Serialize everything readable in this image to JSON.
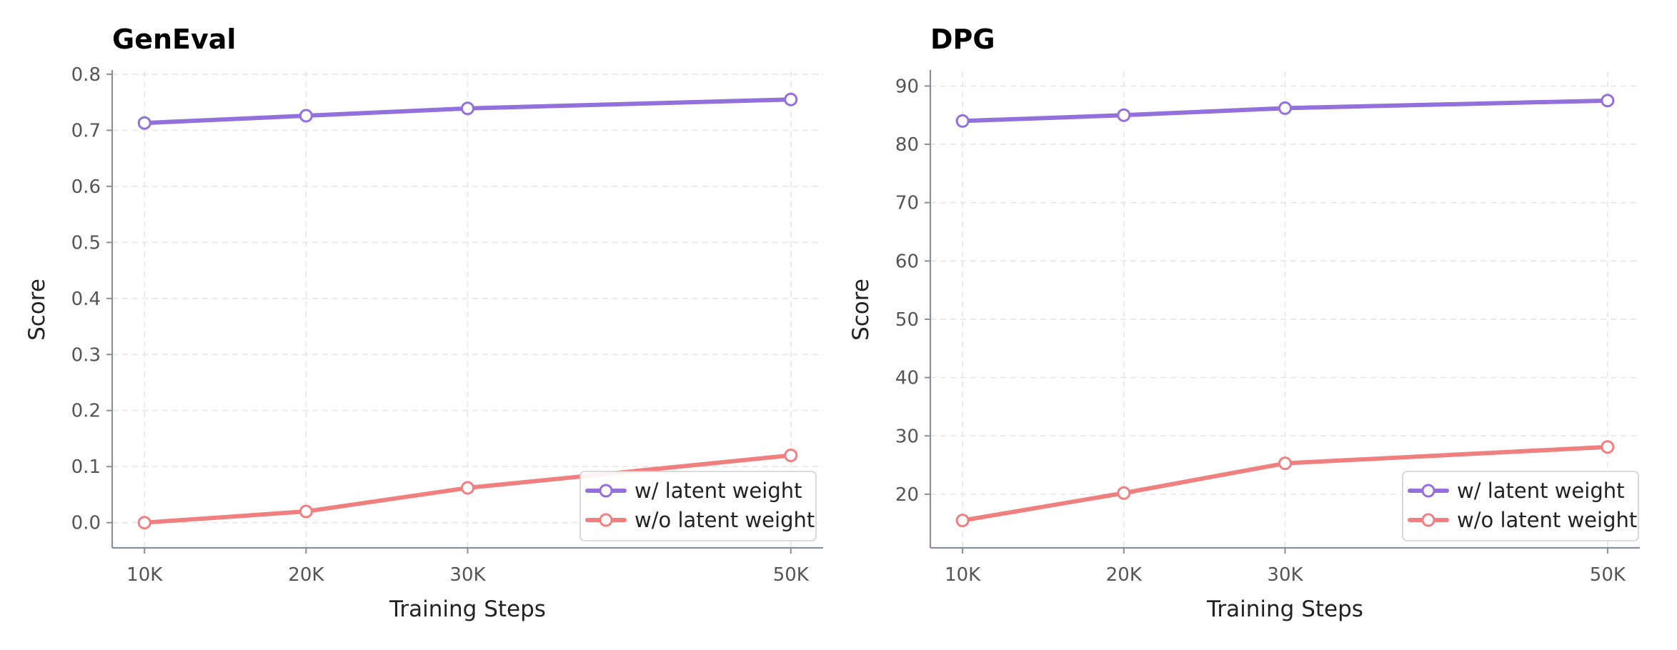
{
  "chart_data": [
    {
      "type": "line",
      "title": "GenEval",
      "xlabel": "Training Steps",
      "ylabel": "Score",
      "x": [
        10000,
        20000,
        30000,
        50000
      ],
      "x_tick_labels": [
        "10K",
        "20K",
        "30K",
        "50K"
      ],
      "y_ticks": [
        0.0,
        0.1,
        0.2,
        0.3,
        0.4,
        0.5,
        0.6,
        0.7,
        0.8
      ],
      "y_tick_labels": [
        "0.0",
        "0.1",
        "0.2",
        "0.3",
        "0.4",
        "0.5",
        "0.6",
        "0.7",
        "0.8"
      ],
      "xlim": [
        8000,
        52000
      ],
      "ylim": [
        -0.045,
        0.805
      ],
      "grid": true,
      "legend_position": "lower-right",
      "series": [
        {
          "name": "w/ latent weight",
          "color": "#9370DB",
          "values": [
            0.713,
            0.726,
            0.739,
            0.755
          ]
        },
        {
          "name": "w/o latent weight",
          "color": "#F08080",
          "values": [
            0.0,
            0.02,
            0.062,
            0.12
          ]
        }
      ]
    },
    {
      "type": "line",
      "title": "DPG",
      "xlabel": "Training Steps",
      "ylabel": "Score",
      "x": [
        10000,
        20000,
        30000,
        50000
      ],
      "x_tick_labels": [
        "10K",
        "20K",
        "30K",
        "50K"
      ],
      "y_ticks": [
        20,
        30,
        40,
        50,
        60,
        70,
        80,
        90
      ],
      "y_tick_labels": [
        "20",
        "30",
        "40",
        "50",
        "60",
        "70",
        "80",
        "90"
      ],
      "xlim": [
        8000,
        52000
      ],
      "ylim": [
        10.8,
        92.5
      ],
      "grid": true,
      "legend_position": "lower-right",
      "series": [
        {
          "name": "w/ latent weight",
          "color": "#9370DB",
          "values": [
            84.0,
            85.0,
            86.2,
            87.5
          ]
        },
        {
          "name": "w/o latent weight",
          "color": "#F08080",
          "values": [
            15.5,
            20.2,
            25.3,
            28.1
          ]
        }
      ]
    }
  ]
}
